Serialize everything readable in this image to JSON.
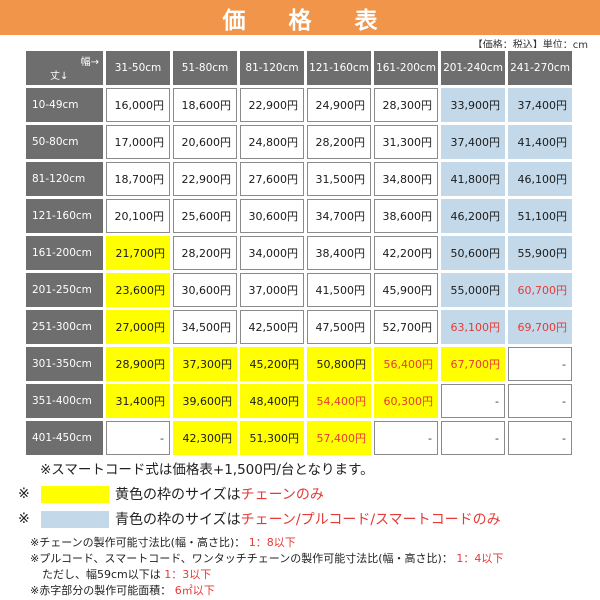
{
  "title": "価　格　表",
  "unit_note": "【価格：税込】単位：cm",
  "corner": {
    "width_label": "幅→",
    "height_label": "丈↓"
  },
  "columns": [
    "31-50cm",
    "51-80cm",
    "81-120cm",
    "121-160cm",
    "161-200cm",
    "201-240cm",
    "241-270cm"
  ],
  "colors": {
    "banner": "#f0954a",
    "header_gray": "#6e6e6e",
    "yellow": "#ffff00",
    "blue": "#c3d9ea",
    "red_text": "#e53a35"
  },
  "rows": [
    {
      "label": "10-49cm",
      "cells": [
        {
          "v": "16,000円",
          "s": "w"
        },
        {
          "v": "18,600円",
          "s": "w"
        },
        {
          "v": "22,900円",
          "s": "w"
        },
        {
          "v": "24,900円",
          "s": "w"
        },
        {
          "v": "28,300円",
          "s": "w"
        },
        {
          "v": "33,900円",
          "s": "b"
        },
        {
          "v": "37,400円",
          "s": "b"
        }
      ]
    },
    {
      "label": "50-80cm",
      "cells": [
        {
          "v": "17,000円",
          "s": "w"
        },
        {
          "v": "20,600円",
          "s": "w"
        },
        {
          "v": "24,800円",
          "s": "w"
        },
        {
          "v": "28,200円",
          "s": "w"
        },
        {
          "v": "31,300円",
          "s": "w"
        },
        {
          "v": "37,400円",
          "s": "b"
        },
        {
          "v": "41,400円",
          "s": "b"
        }
      ]
    },
    {
      "label": "81-120cm",
      "cells": [
        {
          "v": "18,700円",
          "s": "w"
        },
        {
          "v": "22,900円",
          "s": "w"
        },
        {
          "v": "27,600円",
          "s": "w"
        },
        {
          "v": "31,500円",
          "s": "w"
        },
        {
          "v": "34,800円",
          "s": "w"
        },
        {
          "v": "41,800円",
          "s": "b"
        },
        {
          "v": "46,100円",
          "s": "b"
        }
      ]
    },
    {
      "label": "121-160cm",
      "cells": [
        {
          "v": "20,100円",
          "s": "w"
        },
        {
          "v": "25,600円",
          "s": "w"
        },
        {
          "v": "30,600円",
          "s": "w"
        },
        {
          "v": "34,700円",
          "s": "w"
        },
        {
          "v": "38,600円",
          "s": "w"
        },
        {
          "v": "46,200円",
          "s": "b"
        },
        {
          "v": "51,100円",
          "s": "b"
        }
      ]
    },
    {
      "label": "161-200cm",
      "cells": [
        {
          "v": "21,700円",
          "s": "y"
        },
        {
          "v": "28,200円",
          "s": "w"
        },
        {
          "v": "34,000円",
          "s": "w"
        },
        {
          "v": "38,400円",
          "s": "w"
        },
        {
          "v": "42,200円",
          "s": "w"
        },
        {
          "v": "50,600円",
          "s": "b"
        },
        {
          "v": "55,900円",
          "s": "b"
        }
      ]
    },
    {
      "label": "201-250cm",
      "cells": [
        {
          "v": "23,600円",
          "s": "y"
        },
        {
          "v": "30,600円",
          "s": "w"
        },
        {
          "v": "37,000円",
          "s": "w"
        },
        {
          "v": "41,500円",
          "s": "w"
        },
        {
          "v": "45,900円",
          "s": "w"
        },
        {
          "v": "55,000円",
          "s": "b"
        },
        {
          "v": "60,700円",
          "s": "br"
        }
      ]
    },
    {
      "label": "251-300cm",
      "cells": [
        {
          "v": "27,000円",
          "s": "y"
        },
        {
          "v": "34,500円",
          "s": "w"
        },
        {
          "v": "42,500円",
          "s": "w"
        },
        {
          "v": "47,500円",
          "s": "w"
        },
        {
          "v": "52,700円",
          "s": "w"
        },
        {
          "v": "63,100円",
          "s": "br"
        },
        {
          "v": "69,700円",
          "s": "br"
        }
      ]
    },
    {
      "label": "301-350cm",
      "cells": [
        {
          "v": "28,900円",
          "s": "y"
        },
        {
          "v": "37,300円",
          "s": "y"
        },
        {
          "v": "45,200円",
          "s": "y"
        },
        {
          "v": "50,800円",
          "s": "y"
        },
        {
          "v": "56,400円",
          "s": "yr"
        },
        {
          "v": "67,700円",
          "s": "yr"
        },
        {
          "v": "-",
          "s": "d"
        }
      ]
    },
    {
      "label": "351-400cm",
      "cells": [
        {
          "v": "31,400円",
          "s": "y"
        },
        {
          "v": "39,600円",
          "s": "y"
        },
        {
          "v": "48,400円",
          "s": "y"
        },
        {
          "v": "54,400円",
          "s": "yr"
        },
        {
          "v": "60,300円",
          "s": "yr"
        },
        {
          "v": "-",
          "s": "d"
        },
        {
          "v": "-",
          "s": "d"
        }
      ]
    },
    {
      "label": "401-450cm",
      "cells": [
        {
          "v": "-",
          "s": "d"
        },
        {
          "v": "42,300円",
          "s": "y"
        },
        {
          "v": "51,300円",
          "s": "y"
        },
        {
          "v": "57,400円",
          "s": "yr"
        },
        {
          "v": "-",
          "s": "d"
        },
        {
          "v": "-",
          "s": "d"
        },
        {
          "v": "-",
          "s": "d"
        }
      ]
    }
  ],
  "notes": {
    "smart_cord": "※スマートコード式は価格表+1,500円/台となります。",
    "legend_yellow": {
      "mark": "※",
      "prefix": "黄色の枠のサイズは",
      "highlight": "チェーンのみ"
    },
    "legend_blue": {
      "mark": "※",
      "prefix": "青色の枠のサイズは",
      "highlight": "チェーン/プルコード/スマートコードのみ"
    },
    "chain_ratio": {
      "text": "※チェーンの製作可能寸法比(幅・高さ比)：",
      "value": "1：8以下"
    },
    "pull_ratio": {
      "text": "※プルコード、スマートコード、ワンタッチチェーンの製作可能寸法比(幅・高さ比)：",
      "value": "1：4以下"
    },
    "pull_ratio_sub": {
      "text": "ただし、幅59cm以下は",
      "value": "1：3以下"
    },
    "red_area": {
      "text": "※赤字部分の製作可能面積：",
      "value": "6㎡以下"
    }
  }
}
